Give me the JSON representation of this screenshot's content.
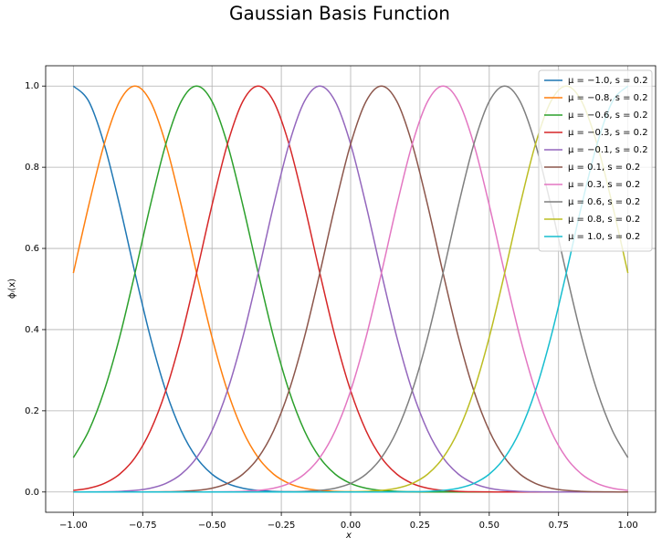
{
  "chart_data": {
    "type": "line",
    "title": "Gaussian Basis Function",
    "x_label": "x",
    "y_label": "ϕᵢ(x)",
    "x": [
      -1,
      -0.9444,
      -0.8889,
      -0.8333,
      -0.7778,
      -0.7222,
      -0.6667,
      -0.6111,
      -0.5556,
      -0.5,
      -0.4444,
      -0.3889,
      -0.3333,
      -0.2778,
      -0.2222,
      -0.1667,
      -0.1111,
      -0.0556,
      0,
      0.0556,
      0.1111,
      0.1667,
      0.2222,
      0.2778,
      0.3333,
      0.3889,
      0.4444,
      0.5,
      0.5556,
      0.6111,
      0.6667,
      0.7222,
      0.7778,
      0.8333,
      0.8889,
      0.9444,
      1
    ],
    "series": [
      {
        "name": "μ = −1.0, s = 0.2",
        "color": "#1f77b4",
        "values": [
          1,
          0.9622,
          0.857,
          0.7066,
          0.5394,
          0.3812,
          0.2494,
          0.151,
          0.0846,
          0.0439,
          0.0211,
          0.0094,
          0.0039,
          0.0015,
          0.0005,
          0.0002,
          0.0001,
          0,
          0,
          0,
          0,
          0,
          0,
          0,
          0,
          0,
          0,
          0,
          0,
          0,
          0,
          0,
          0,
          0,
          0,
          0,
          0
        ]
      },
      {
        "name": "μ = −0.8, s = 0.2",
        "color": "#ff7f0e",
        "values": [
          0.5394,
          0.7066,
          0.857,
          0.9622,
          1,
          0.9622,
          0.857,
          0.7066,
          0.5394,
          0.3812,
          0.2494,
          0.151,
          0.0846,
          0.0439,
          0.0211,
          0.0094,
          0.0039,
          0.0015,
          0.0005,
          0.0002,
          0.0001,
          0,
          0,
          0,
          0,
          0,
          0,
          0,
          0,
          0,
          0,
          0,
          0,
          0,
          0,
          0,
          0
        ]
      },
      {
        "name": "μ = −0.6, s = 0.2",
        "color": "#2ca02c",
        "values": [
          0.0846,
          0.151,
          0.2494,
          0.3812,
          0.5394,
          0.7066,
          0.857,
          0.9622,
          1,
          0.9622,
          0.857,
          0.7066,
          0.5394,
          0.3812,
          0.2494,
          0.151,
          0.0846,
          0.0439,
          0.0211,
          0.0094,
          0.0039,
          0.0015,
          0.0005,
          0.0002,
          0.0001,
          0,
          0,
          0,
          0,
          0,
          0,
          0,
          0,
          0,
          0,
          0,
          0
        ]
      },
      {
        "name": "μ = −0.3, s = 0.2",
        "color": "#d62728",
        "values": [
          0.0039,
          0.0094,
          0.0211,
          0.0439,
          0.0846,
          0.151,
          0.2494,
          0.3812,
          0.5394,
          0.7066,
          0.857,
          0.9622,
          1,
          0.9622,
          0.857,
          0.7066,
          0.5394,
          0.3812,
          0.2494,
          0.151,
          0.0846,
          0.0439,
          0.0211,
          0.0094,
          0.0039,
          0.0015,
          0.0005,
          0.0002,
          0.0001,
          0,
          0,
          0,
          0,
          0,
          0,
          0,
          0
        ]
      },
      {
        "name": "μ = −0.1, s = 0.2",
        "color": "#9467bd",
        "values": [
          0.0001,
          0.0002,
          0.0005,
          0.0015,
          0.0039,
          0.0094,
          0.0211,
          0.0439,
          0.0846,
          0.151,
          0.2494,
          0.3812,
          0.5394,
          0.7066,
          0.857,
          0.9622,
          1,
          0.9622,
          0.857,
          0.7066,
          0.5394,
          0.3812,
          0.2494,
          0.151,
          0.0846,
          0.0439,
          0.0211,
          0.0094,
          0.0039,
          0.0015,
          0.0005,
          0.0002,
          0.0001,
          0,
          0,
          0,
          0
        ]
      },
      {
        "name": "μ = 0.1, s = 0.2",
        "color": "#8c564b",
        "values": [
          0,
          0,
          0,
          0,
          0.0001,
          0.0002,
          0.0005,
          0.0015,
          0.0039,
          0.0094,
          0.0211,
          0.0439,
          0.0846,
          0.151,
          0.2494,
          0.3812,
          0.5394,
          0.7066,
          0.857,
          0.9622,
          1,
          0.9622,
          0.857,
          0.7066,
          0.5394,
          0.3812,
          0.2494,
          0.151,
          0.0846,
          0.0439,
          0.0211,
          0.0094,
          0.0039,
          0.0015,
          0.0005,
          0.0002,
          0.0001
        ]
      },
      {
        "name": "μ = 0.3, s = 0.2",
        "color": "#e377c2",
        "values": [
          0,
          0,
          0,
          0,
          0,
          0,
          0,
          0,
          0.0001,
          0.0002,
          0.0005,
          0.0015,
          0.0039,
          0.0094,
          0.0211,
          0.0439,
          0.0846,
          0.151,
          0.2494,
          0.3812,
          0.5394,
          0.7066,
          0.857,
          0.9622,
          1,
          0.9622,
          0.857,
          0.7066,
          0.5394,
          0.3812,
          0.2494,
          0.151,
          0.0846,
          0.0439,
          0.0211,
          0.0094,
          0.0039
        ]
      },
      {
        "name": "μ = 0.6, s = 0.2",
        "color": "#7f7f7f",
        "values": [
          0,
          0,
          0,
          0,
          0,
          0,
          0,
          0,
          0,
          0,
          0,
          0,
          0.0001,
          0.0002,
          0.0005,
          0.0015,
          0.0039,
          0.0094,
          0.0211,
          0.0439,
          0.0846,
          0.151,
          0.2494,
          0.3812,
          0.5394,
          0.7066,
          0.857,
          0.9622,
          1,
          0.9622,
          0.857,
          0.7066,
          0.5394,
          0.3812,
          0.2494,
          0.151,
          0.0846
        ]
      },
      {
        "name": "μ = 0.8, s = 0.2",
        "color": "#bcbd22",
        "values": [
          0,
          0,
          0,
          0,
          0,
          0,
          0,
          0,
          0,
          0,
          0,
          0,
          0,
          0,
          0,
          0,
          0.0001,
          0.0002,
          0.0005,
          0.0015,
          0.0039,
          0.0094,
          0.0211,
          0.0439,
          0.0846,
          0.151,
          0.2494,
          0.3812,
          0.5394,
          0.7066,
          0.857,
          0.9622,
          1,
          0.9622,
          0.857,
          0.7066,
          0.5394
        ]
      },
      {
        "name": "μ = 1.0, s = 0.2",
        "color": "#17becf",
        "values": [
          0,
          0,
          0,
          0,
          0,
          0,
          0,
          0,
          0,
          0,
          0,
          0,
          0,
          0,
          0,
          0,
          0,
          0,
          0,
          0,
          0.0001,
          0.0002,
          0.0005,
          0.0015,
          0.0039,
          0.0094,
          0.0211,
          0.0439,
          0.0846,
          0.151,
          0.2494,
          0.3812,
          0.5394,
          0.7066,
          0.857,
          0.9622,
          1
        ]
      }
    ],
    "xlim": [
      -1.1,
      1.1
    ],
    "ylim": [
      -0.05,
      1.05
    ],
    "xticks": [
      {
        "value": -1,
        "label": "−1.00"
      },
      {
        "value": -0.75,
        "label": "−0.75"
      },
      {
        "value": -0.5,
        "label": "−0.50"
      },
      {
        "value": -0.25,
        "label": "−0.25"
      },
      {
        "value": 0,
        "label": "0.00"
      },
      {
        "value": 0.25,
        "label": "0.25"
      },
      {
        "value": 0.5,
        "label": "0.50"
      },
      {
        "value": 0.75,
        "label": "0.75"
      },
      {
        "value": 1,
        "label": "1.00"
      }
    ],
    "yticks": [
      {
        "value": 0,
        "label": "0.0"
      },
      {
        "value": 0.2,
        "label": "0.2"
      },
      {
        "value": 0.4,
        "label": "0.4"
      },
      {
        "value": 0.6,
        "label": "0.6"
      },
      {
        "value": 0.8,
        "label": "0.8"
      },
      {
        "value": 1,
        "label": "1.0"
      }
    ],
    "grid": true,
    "legend": "upper right"
  }
}
